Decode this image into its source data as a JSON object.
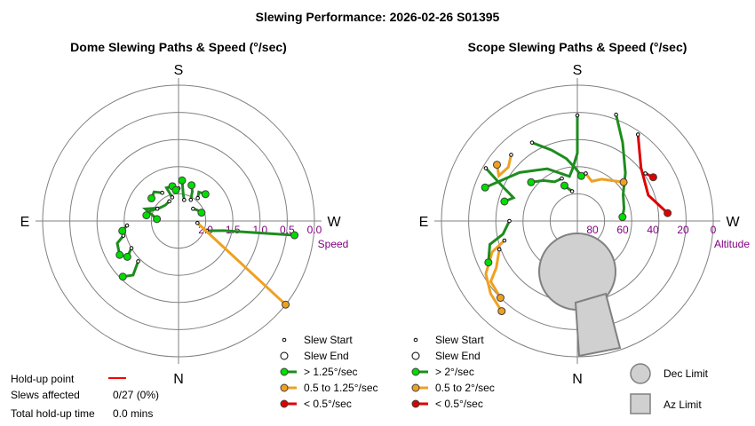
{
  "title": "Slewing Performance: 2026-02-26 S01395",
  "colors": {
    "ring": "#808080",
    "fast": "#00dd00",
    "fast_line": "#1e8c1e",
    "medium": "#f0a020",
    "slow": "#dd0000",
    "tick": "#800080",
    "limit_fill": "#d0d0d0",
    "limit_stroke": "#808080",
    "holdup": "#ff0000"
  },
  "hold_up": {
    "point_label": "Hold-up point",
    "slews_label": "Slews affected",
    "slews_value": "0/27 (0%)",
    "total_label": "Total hold-up time",
    "total_value": "0.0 mins"
  },
  "chart_data": [
    {
      "type": "scatter",
      "projection": "polar",
      "title": "Dome Slewing Paths & Speed (°/sec)",
      "radial_label": "Speed",
      "radial_ticks": [
        "2.0",
        "1.5",
        "1.0",
        "0.5",
        "0.0"
      ],
      "radial_ticks_value": [
        2.0,
        1.5,
        1.0,
        0.5,
        0.0
      ],
      "radial_range": [
        2.5,
        0.0
      ],
      "compass": {
        "top": "S",
        "bottom": "N",
        "left": "E",
        "right": "W"
      },
      "legend": [
        {
          "label": "Slew Start",
          "kind": "start"
        },
        {
          "label": "Slew End",
          "kind": "end"
        },
        {
          "label": "> 1.25°/sec",
          "kind": "fast"
        },
        {
          "label": "0.5 to 1.25°/sec",
          "kind": "medium"
        },
        {
          "label": "< 0.5°/sec",
          "kind": "slow"
        }
      ],
      "series": [
        {
          "points": [
            [
              289,
              1.95
            ],
            [
              282,
              1.65
            ],
            [
              277,
              0.35
            ]
          ],
          "speed": "fast"
        },
        {
          "points": [
            [
              276,
              2.15
            ],
            [
              308,
              0.0
            ],
            [
              308,
              0.0
            ]
          ],
          "speed": "medium"
        },
        {
          "points": [
            [
              155,
              2.1
            ],
            [
              140,
              2.12
            ],
            [
              125,
              2.08
            ],
            [
              110,
              1.85
            ],
            [
              95,
              2.1
            ]
          ],
          "speed": "fast"
        },
        {
          "points": [
            [
              165,
              2.05
            ],
            [
              160,
              1.85
            ],
            [
              170,
              1.85
            ]
          ],
          "speed": "fast"
        },
        {
          "points": [
            [
              180,
              1.9
            ],
            [
              175,
              1.93
            ]
          ],
          "speed": "fast"
        },
        {
          "points": [
            [
              150,
              1.9
            ],
            [
              140,
              1.8
            ],
            [
              130,
              1.85
            ]
          ],
          "speed": "fast"
        },
        {
          "points": [
            [
              210,
              2.05
            ],
            [
              205,
              1.9
            ],
            [
              200,
              1.8
            ]
          ],
          "speed": "fast"
        },
        {
          "points": [
            [
              195,
              2.1
            ],
            [
              190,
              2.0
            ],
            [
              185,
              1.75
            ]
          ],
          "speed": "fast"
        },
        {
          "points": [
            [
              230,
              2.15
            ],
            [
              240,
              2.1
            ],
            [
              250,
              2.05
            ]
          ],
          "speed": "fast"
        },
        {
          "points": [
            [
              220,
              1.95
            ],
            [
              215,
              1.85
            ],
            [
              225,
              1.8
            ]
          ],
          "speed": "fast"
        },
        {
          "points": [
            [
              120,
              2.05
            ],
            [
              110,
              1.95
            ],
            [
              100,
              1.9
            ]
          ],
          "speed": "fast"
        },
        {
          "points": [
            [
              75,
              1.45
            ],
            [
              70,
              1.3
            ],
            [
              60,
              1.25
            ]
          ],
          "speed": "fast"
        },
        {
          "points": [
            [
              60,
              1.5
            ],
            [
              55,
              1.35
            ]
          ],
          "speed": "fast"
        },
        {
          "points": [
            [
              45,
              1.45
            ],
            [
              40,
              1.2
            ],
            [
              45,
              1.05
            ]
          ],
          "speed": "fast"
        },
        {
          "points": [
            [
              85,
              1.55
            ],
            [
              80,
              1.45
            ]
          ],
          "speed": "fast"
        }
      ]
    },
    {
      "type": "scatter",
      "projection": "polar",
      "title": "Scope Slewing Paths & Speed (°/sec)",
      "radial_label": "Altitude",
      "radial_ticks": [
        "80",
        "60",
        "40",
        "20",
        "0"
      ],
      "radial_ticks_value": [
        80,
        60,
        40,
        20,
        0
      ],
      "radial_range": [
        90,
        0
      ],
      "compass": {
        "top": "S",
        "bottom": "N",
        "left": "E",
        "right": "W"
      },
      "legend": [
        {
          "label": "Slew Start",
          "kind": "start"
        },
        {
          "label": "Slew End",
          "kind": "end"
        },
        {
          "label": "> 2°/sec",
          "kind": "fast"
        },
        {
          "label": "0.5 to 2°/sec",
          "kind": "medium"
        },
        {
          "label": "< 0.5°/sec",
          "kind": "slow"
        }
      ],
      "limits": [
        {
          "label": "Dec Limit",
          "kind": "dec"
        },
        {
          "label": "Az Limit",
          "kind": "az"
        }
      ],
      "series": [
        {
          "points": [
            [
              180,
              20
            ],
            [
              180,
              45
            ],
            [
              175,
              55
            ],
            [
              170,
              60
            ],
            [
              150,
              50
            ],
            [
              130,
              40
            ],
            [
              110,
              25
            ]
          ],
          "speed": "fast"
        },
        {
          "points": [
            [
              200,
              15
            ],
            [
              210,
              30
            ],
            [
              225,
              45
            ],
            [
              240,
              55
            ],
            [
              255,
              58
            ],
            [
              265,
              60
            ]
          ],
          "speed": "fast"
        },
        {
          "points": [
            [
              150,
              30
            ],
            [
              160,
              40
            ],
            [
              170,
              48
            ],
            [
              178,
              55
            ],
            [
              185,
              60
            ]
          ],
          "speed": "fast"
        },
        {
          "points": [
            [
              135,
              28
            ],
            [
              128,
              32
            ],
            [
              120,
              30
            ],
            [
              125,
              25
            ]
          ],
          "speed": "medium"
        },
        {
          "points": [
            [
              190,
              58
            ],
            [
              200,
              62
            ],
            [
              210,
              58
            ],
            [
              220,
              55
            ],
            [
              230,
              50
            ]
          ],
          "speed": "medium"
        },
        {
          "points": [
            [
              215,
              20
            ],
            [
              230,
              35
            ],
            [
              250,
              40
            ],
            [
              265,
              30
            ]
          ],
          "speed": "slow"
        },
        {
          "points": [
            [
              120,
              20
            ],
            [
              115,
              35
            ],
            [
              110,
              45
            ],
            [
              105,
              40
            ]
          ],
          "speed": "fast"
        },
        {
          "points": [
            [
              75,
              40
            ],
            [
              70,
              30
            ],
            [
              60,
              20
            ],
            [
              50,
              15
            ],
            [
              40,
              12
            ]
          ],
          "speed": "medium"
        },
        {
          "points": [
            [
              70,
              35
            ],
            [
              60,
              28
            ],
            [
              55,
              20
            ],
            [
              45,
              18
            ]
          ],
          "speed": "medium"
        },
        {
          "points": [
            [
              90,
              45
            ],
            [
              80,
              40
            ],
            [
              75,
              30
            ],
            [
              65,
              25
            ]
          ],
          "speed": "fast"
        },
        {
          "points": [
            [
              160,
              60
            ],
            [
              150,
              60
            ],
            [
              140,
              55
            ],
            [
              130,
              50
            ]
          ],
          "speed": "fast"
        },
        {
          "points": [
            [
              170,
              70
            ],
            [
              165,
              68
            ],
            [
              160,
              65
            ]
          ],
          "speed": "fast"
        },
        {
          "points": [
            [
              235,
              35
            ],
            [
              240,
              32
            ]
          ],
          "speed": "slow"
        }
      ]
    }
  ]
}
